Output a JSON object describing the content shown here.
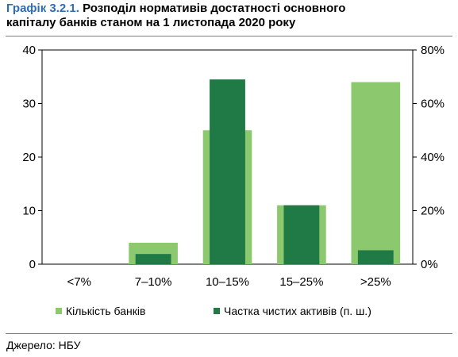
{
  "title": {
    "number": "Графік 3.2.1.",
    "line1": "Розподіл нормативів достатності основного",
    "line2": "капіталу банків станом на 1 листопада 2020 року"
  },
  "source": "Джерело: НБУ",
  "colors": {
    "banks": "#8cc96e",
    "assets": "#1f7a45",
    "axis": "#000000"
  },
  "chart_data": {
    "type": "bar",
    "categories": [
      "<7%",
      "7–10%",
      "10–15%",
      "15–25%",
      ">25%"
    ],
    "series": [
      {
        "name": "Кількість банків",
        "axis": "left",
        "values": [
          0,
          4,
          25,
          11,
          34
        ]
      },
      {
        "name": "Частка чистих активів (п. ш.)",
        "axis": "right",
        "values": [
          0,
          3.8,
          69,
          22,
          5.2
        ]
      }
    ],
    "ylim_left": [
      0,
      40
    ],
    "yticks_left": [
      "0",
      "10",
      "20",
      "30",
      "40"
    ],
    "ylim_right": [
      0,
      80
    ],
    "yticks_right": [
      "0%",
      "20%",
      "40%",
      "60%",
      "80%"
    ],
    "legend_position": "bottom",
    "grid": false
  }
}
